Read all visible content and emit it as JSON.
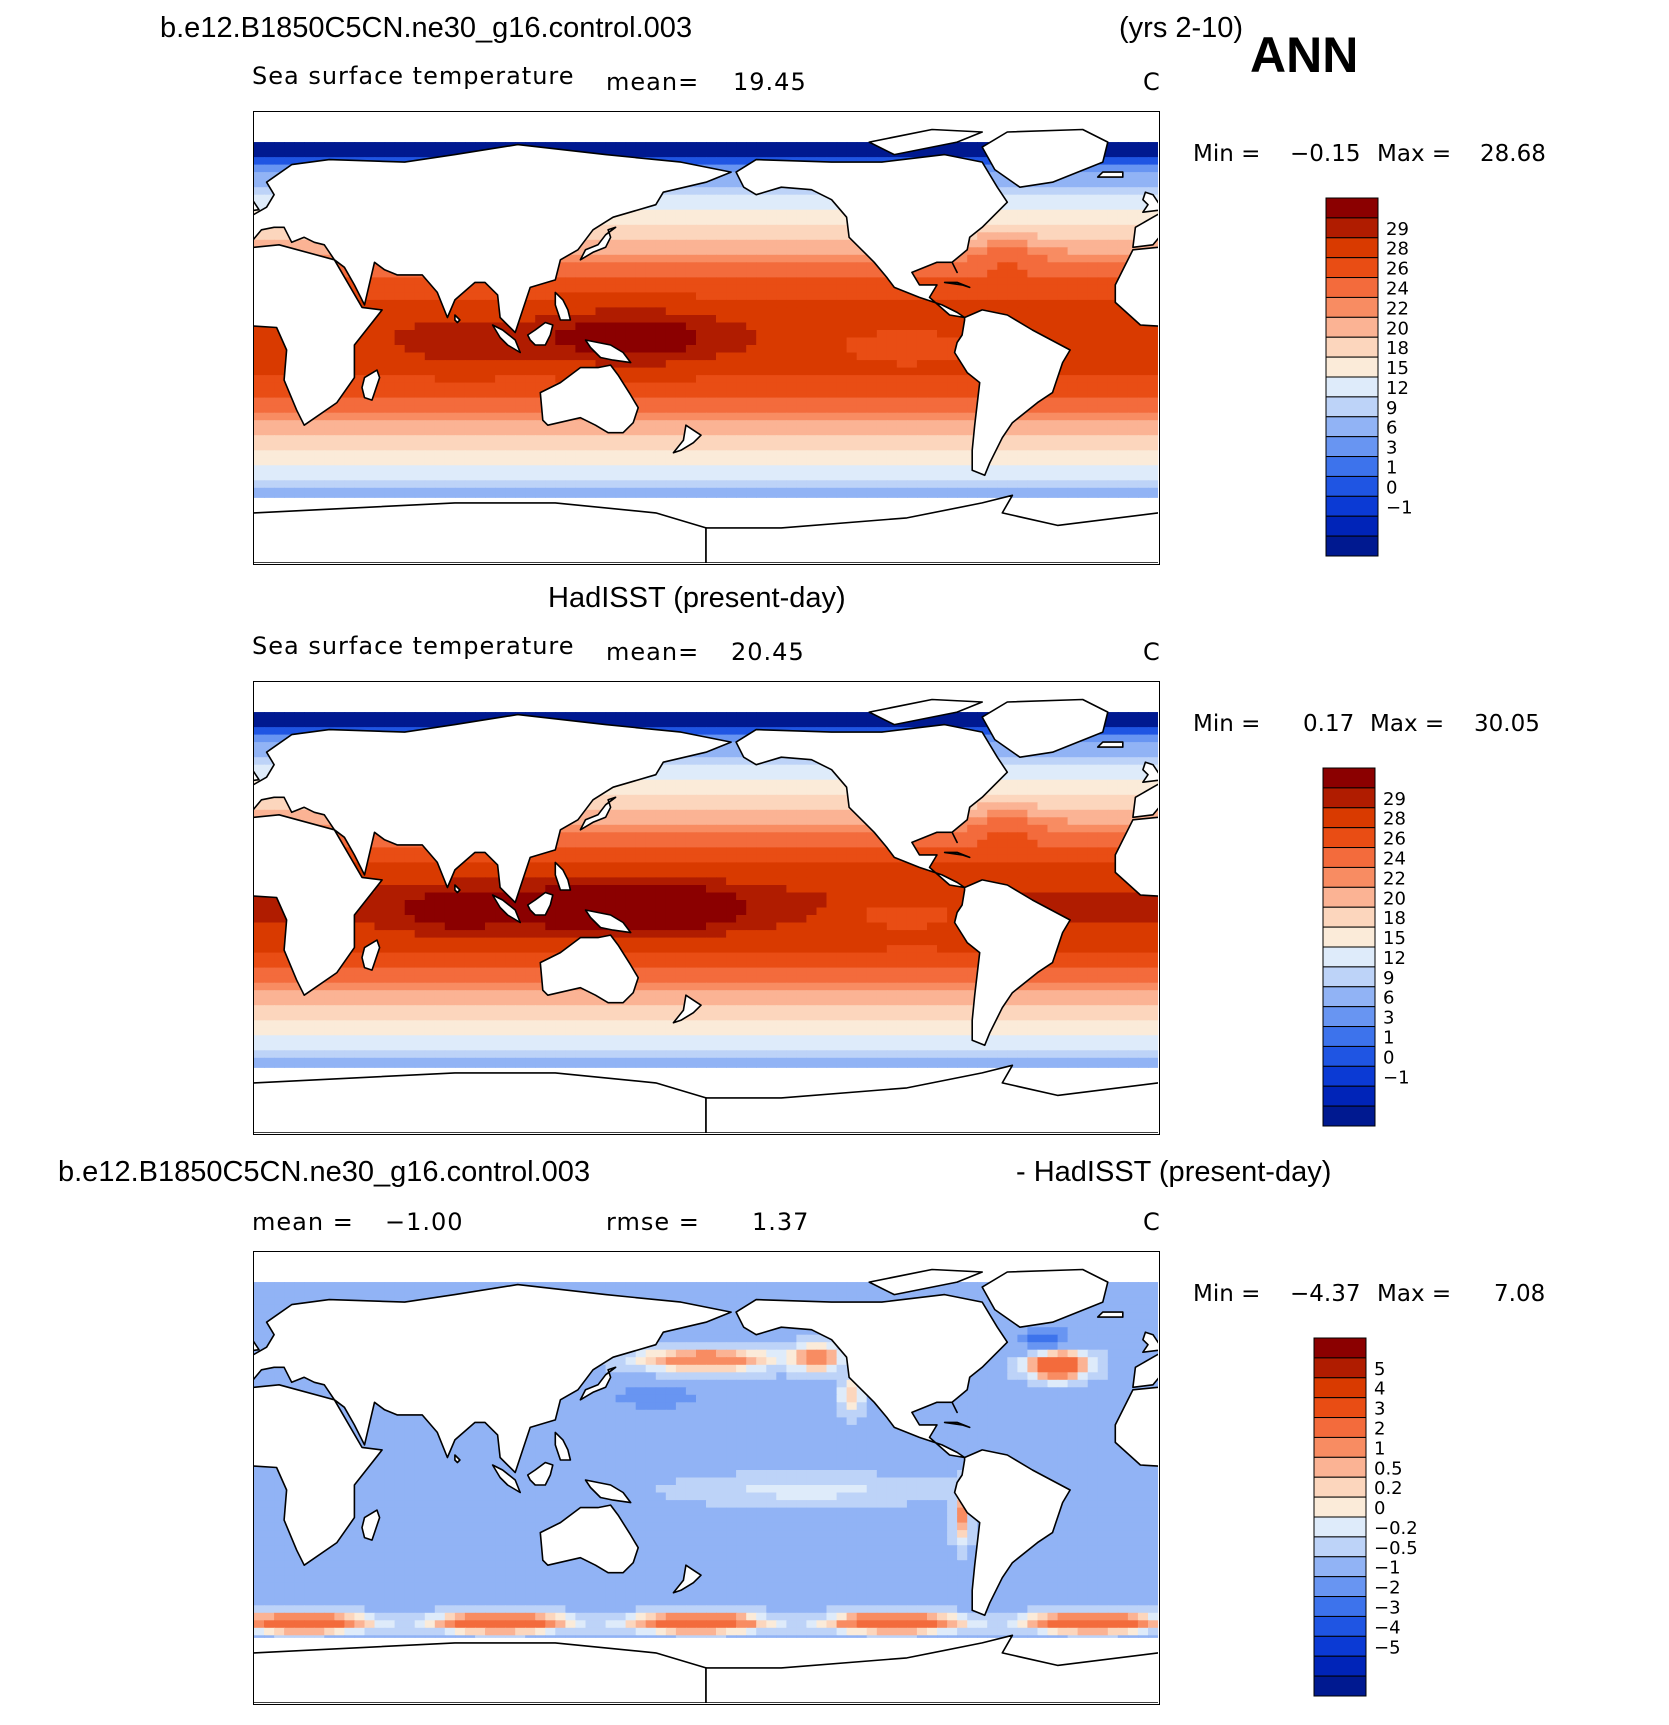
{
  "header": {
    "case_title": "b.e12.B1850C5CN.ne30_g16.control.003",
    "years": "(yrs 2-10)",
    "season": "ANN"
  },
  "panels": [
    {
      "title": "",
      "variable": "Sea surface temperature",
      "mean_label": "mean=",
      "mean_value": "19.45",
      "units": "C",
      "min_label": "Min =",
      "min_value": "−0.15",
      "max_label": "Max =",
      "max_value": "28.68",
      "colorbar_ticks": [
        "29",
        "28",
        "26",
        "24",
        "22",
        "20",
        "18",
        "15",
        "12",
        "9",
        "6",
        "3",
        "1",
        "0",
        "−1"
      ],
      "colorbar_colors": [
        "#8b0000",
        "#b01c00",
        "#d93a00",
        "#e94d14",
        "#f36b3c",
        "#f88c62",
        "#fbb394",
        "#fcd6bd",
        "#fbebd9",
        "#deebfa",
        "#bdd3f8",
        "#91b3f5",
        "#6895f2",
        "#3d73ec",
        "#1f55e3",
        "#0b3ad4",
        "#0024b8",
        "#001990"
      ],
      "fields": {
        "warm": 1.0,
        "shift": 0
      }
    },
    {
      "title": "HadISST (present-day)",
      "variable": "Sea surface temperature",
      "mean_label": "mean=",
      "mean_value": "20.45",
      "units": "C",
      "min_label": "Min =",
      "min_value": "0.17",
      "max_label": "Max =",
      "max_value": "30.05",
      "colorbar_ticks": [
        "29",
        "28",
        "26",
        "24",
        "22",
        "20",
        "18",
        "15",
        "12",
        "9",
        "6",
        "3",
        "1",
        "0",
        "−1"
      ],
      "colorbar_colors": [
        "#8b0000",
        "#b01c00",
        "#d93a00",
        "#e94d14",
        "#f36b3c",
        "#f88c62",
        "#fbb394",
        "#fcd6bd",
        "#fbebd9",
        "#deebfa",
        "#bdd3f8",
        "#91b3f5",
        "#6895f2",
        "#3d73ec",
        "#1f55e3",
        "#0b3ad4",
        "#0024b8",
        "#001990"
      ],
      "fields": {
        "warm": 1.15,
        "shift": 1
      }
    },
    {
      "title_left": "b.e12.B1850C5CN.ne30_g16.control.003",
      "title_right": "- HadISST (present-day)",
      "mean_label": "mean =",
      "mean_value": "−1.00",
      "rmse_label": "rmse =",
      "rmse_value": "1.37",
      "units": "C",
      "min_label": "Min =",
      "min_value": "−4.37",
      "max_label": "Max =",
      "max_value": "7.08",
      "colorbar_ticks": [
        "5",
        "4",
        "3",
        "2",
        "1",
        "0.5",
        "0.2",
        "0",
        "−0.2",
        "−0.5",
        "−1",
        "−2",
        "−3",
        "−4",
        "−5"
      ],
      "colorbar_colors": [
        "#8b0000",
        "#b01c00",
        "#d93a00",
        "#e94d14",
        "#f36b3c",
        "#f88c62",
        "#fbb394",
        "#fcd6bd",
        "#fbebd9",
        "#deebfa",
        "#bdd3f8",
        "#91b3f5",
        "#6895f2",
        "#3d73ec",
        "#1f55e3",
        "#0b3ad4",
        "#0024b8",
        "#001990"
      ]
    }
  ]
}
